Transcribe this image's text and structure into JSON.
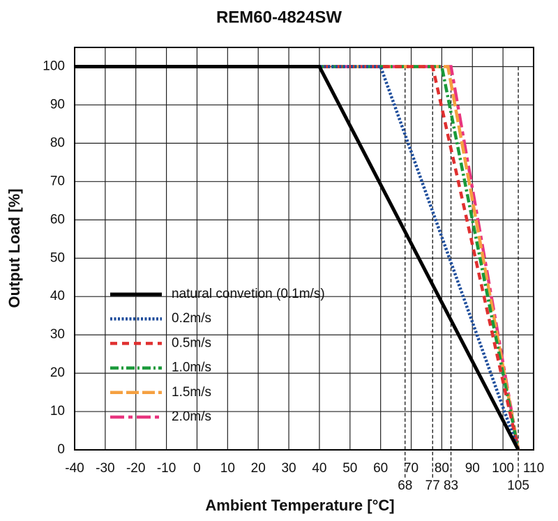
{
  "chart_data": {
    "type": "line",
    "title": "REM60-4824SW",
    "xlabel": "Ambient Temperature [°C]",
    "ylabel": "Output Load [%]",
    "xlim": [
      -40,
      110
    ],
    "ylim": [
      0,
      105
    ],
    "xticks": [
      -40,
      -30,
      -20,
      -10,
      0,
      10,
      20,
      30,
      40,
      50,
      60,
      70,
      80,
      90,
      100,
      110
    ],
    "yticks": [
      0,
      10,
      20,
      30,
      40,
      50,
      60,
      70,
      80,
      90,
      100
    ],
    "xmarkers": [
      68,
      77,
      83,
      105
    ],
    "grid": true,
    "legend": "lower left",
    "series": [
      {
        "name": "natural convetion (0.1m/s)",
        "color": "#000000",
        "style": "solid",
        "x": [
          -40,
          40,
          105
        ],
        "values": [
          100,
          100,
          0
        ]
      },
      {
        "name": "0.2m/s",
        "color": "#1f4e9c",
        "style": "dotted",
        "x": [
          -40,
          60,
          105
        ],
        "values": [
          100,
          100,
          0
        ]
      },
      {
        "name": "0.5m/s",
        "color": "#e03030",
        "style": "dashed",
        "x": [
          -40,
          77,
          105
        ],
        "values": [
          100,
          100,
          0
        ]
      },
      {
        "name": "1.0m/s",
        "color": "#1a9a3a",
        "style": "dashdot",
        "x": [
          -40,
          80,
          105
        ],
        "values": [
          100,
          100,
          0
        ]
      },
      {
        "name": "1.5m/s",
        "color": "#f5a040",
        "style": "longdash",
        "x": [
          -40,
          82,
          105
        ],
        "values": [
          100,
          100,
          0
        ]
      },
      {
        "name": "2.0m/s",
        "color": "#e8357f",
        "style": "dashdotlong",
        "x": [
          -40,
          83,
          105
        ],
        "values": [
          100,
          100,
          0
        ]
      }
    ]
  }
}
